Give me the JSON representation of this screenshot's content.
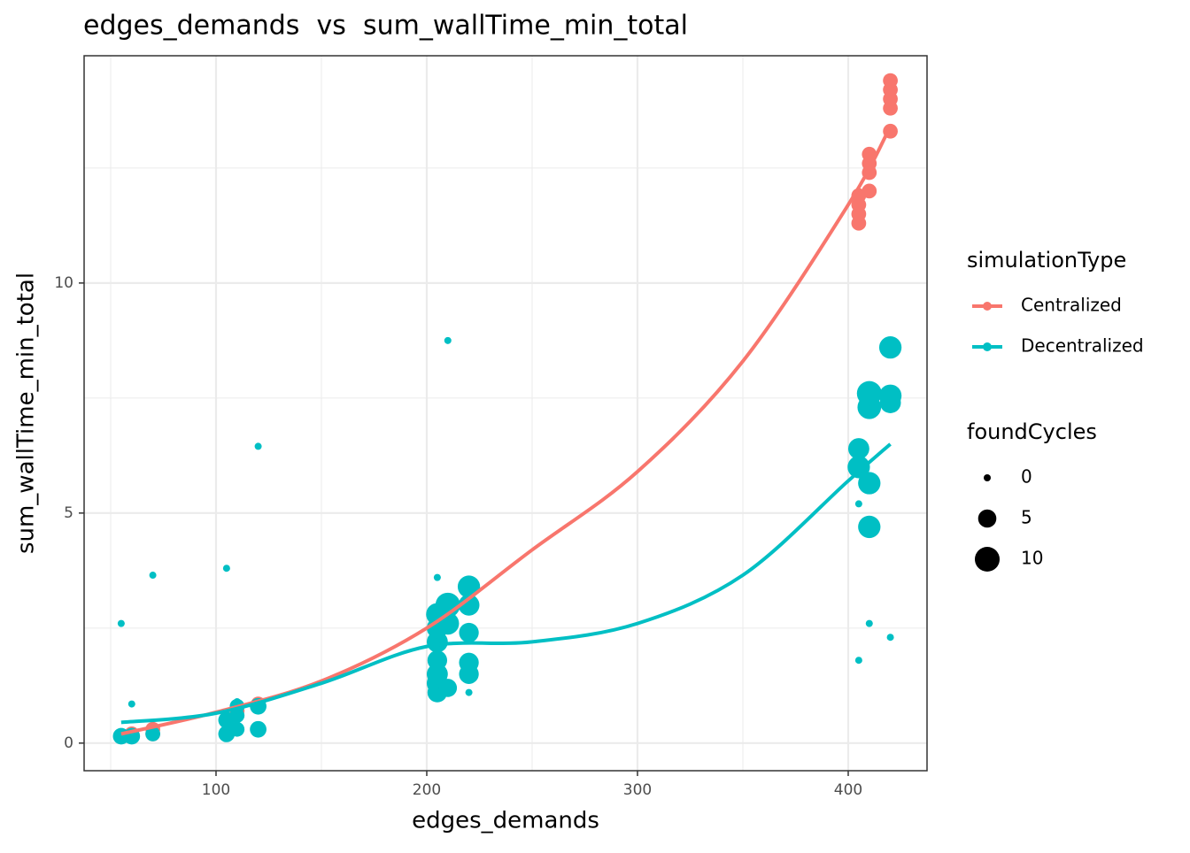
{
  "chart_data": {
    "type": "scatter",
    "title": "edges_demands  vs  sum_wallTime_min_total",
    "x_label": "edges_demands",
    "y_label": "sum_wallTime_min_total",
    "xlim": [
      37.4,
      437.4
    ],
    "ylim": [
      -0.6,
      14.94
    ],
    "xticks": [
      100,
      200,
      300,
      400
    ],
    "yticks": [
      0,
      5,
      10
    ],
    "grid": true,
    "color_legend_title": "simulationType",
    "size_legend_title": "foundCycles",
    "size_legend": [
      0,
      5,
      10
    ],
    "size_range": [
      0,
      10
    ],
    "series": [
      {
        "name": "Centralized",
        "color": "#f8766d",
        "x": [
          55,
          60,
          70,
          70,
          110,
          120,
          220,
          405,
          405,
          405,
          405,
          410,
          410,
          410,
          410,
          420,
          420,
          420,
          420,
          420
        ],
        "values": [
          0.15,
          0.2,
          0.3,
          0.2,
          0.7,
          0.85,
          3.4,
          11.3,
          11.5,
          11.7,
          11.9,
          12.0,
          12.4,
          12.6,
          12.8,
          13.3,
          13.8,
          14.0,
          14.2,
          14.4
        ],
        "sizes": [
          3,
          3,
          3,
          3,
          3,
          3,
          3,
          3,
          3,
          3,
          3,
          3,
          3,
          3,
          3,
          3,
          3,
          3,
          3,
          3
        ],
        "fit_x": [
          55,
          100,
          150,
          200,
          250,
          300,
          350,
          400,
          420
        ],
        "fit_values": [
          0.2,
          0.67,
          1.35,
          2.5,
          4.2,
          5.9,
          8.3,
          11.7,
          13.4
        ]
      },
      {
        "name": "Decentralized",
        "color": "#00bfc4",
        "x": [
          55,
          55,
          60,
          60,
          70,
          70,
          105,
          105,
          105,
          110,
          110,
          110,
          110,
          120,
          120,
          120,
          205,
          205,
          205,
          205,
          205,
          205,
          205,
          205,
          210,
          210,
          210,
          210,
          220,
          220,
          220,
          220,
          220,
          220,
          405,
          405,
          405,
          405,
          410,
          410,
          410,
          410,
          410,
          420,
          420,
          420,
          420
        ],
        "values": [
          2.6,
          0.15,
          0.85,
          0.15,
          3.65,
          0.2,
          3.8,
          0.2,
          0.5,
          0.3,
          0.6,
          0.8,
          0.9,
          6.45,
          0.3,
          0.8,
          3.6,
          1.1,
          1.3,
          1.5,
          1.8,
          2.2,
          2.5,
          2.8,
          8.75,
          1.2,
          3.0,
          2.6,
          1.1,
          1.5,
          1.75,
          2.4,
          3.0,
          3.4,
          5.2,
          1.8,
          6.0,
          6.4,
          2.6,
          4.7,
          5.65,
          7.3,
          7.6,
          2.3,
          8.6,
          7.4,
          7.55
        ],
        "sizes": [
          0,
          4,
          0,
          4,
          0,
          3,
          0,
          4,
          4,
          3,
          3,
          3,
          0,
          0,
          4,
          4,
          0,
          6,
          7,
          7,
          6,
          7,
          7,
          8,
          0,
          5,
          10,
          8,
          0,
          6,
          6,
          6,
          7,
          8,
          0,
          0,
          8,
          7,
          0,
          8,
          8,
          9,
          10,
          0,
          8,
          7,
          8
        ],
        "fit_x": [
          55,
          100,
          150,
          200,
          250,
          300,
          350,
          400,
          420
        ],
        "fit_values": [
          0.45,
          0.65,
          1.3,
          2.1,
          2.2,
          2.6,
          3.65,
          5.7,
          6.5
        ]
      }
    ]
  }
}
